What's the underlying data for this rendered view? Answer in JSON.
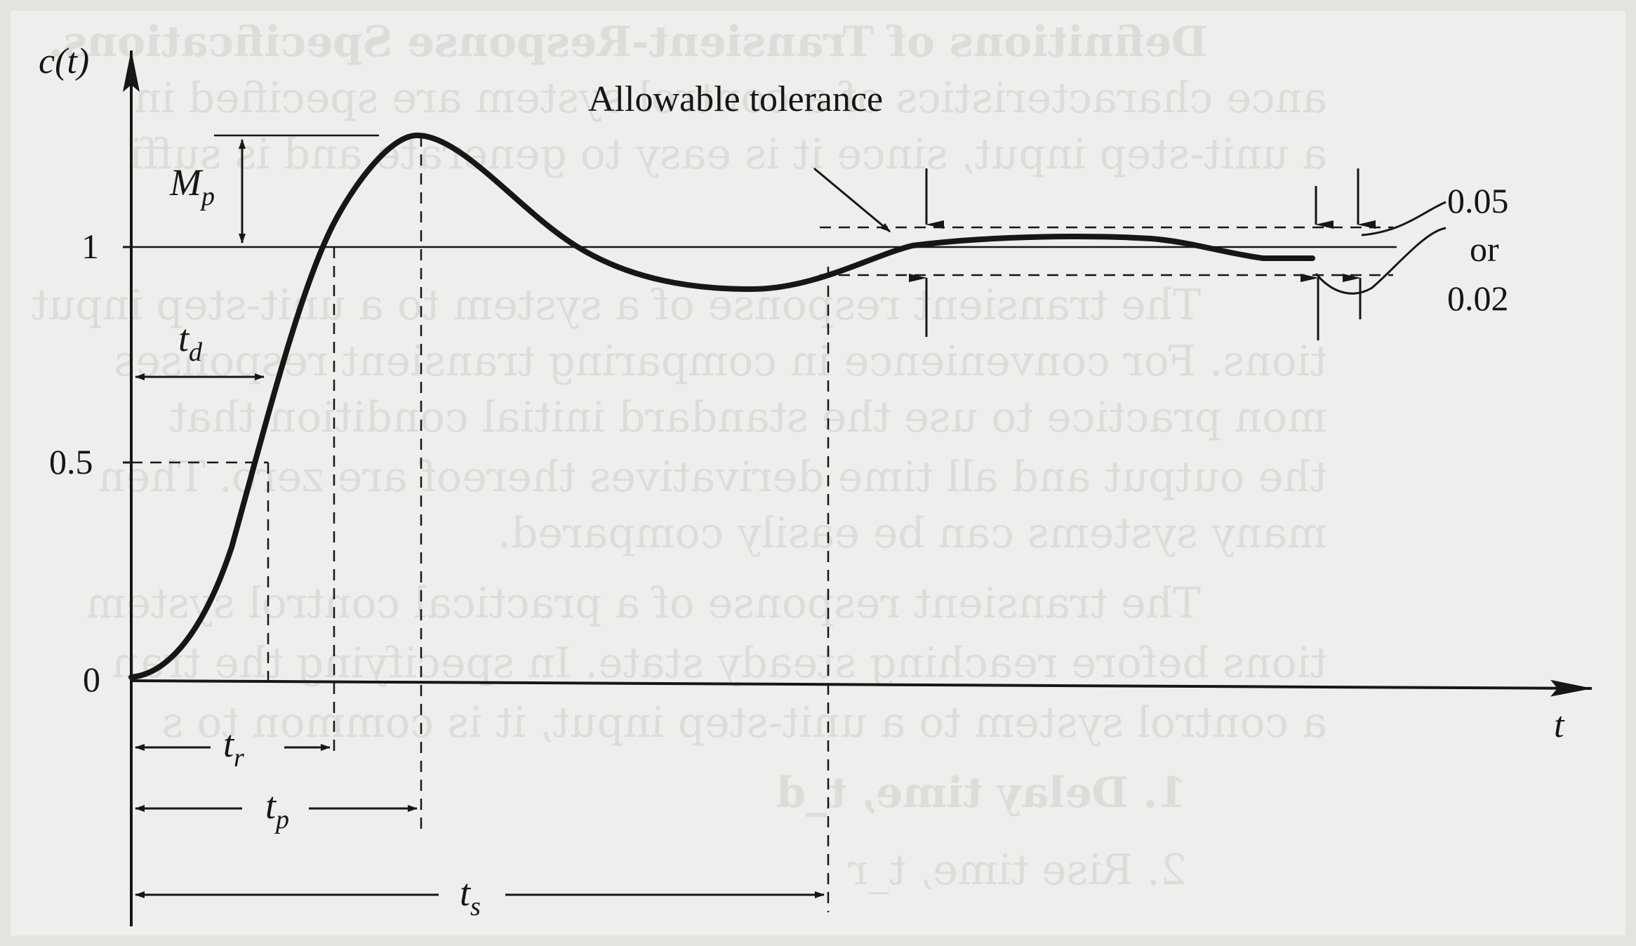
{
  "figure": {
    "y_axis_label": "c(t)",
    "x_axis_label": "t",
    "y_ticks": [
      "1",
      "0.5",
      "0"
    ],
    "annotations": {
      "allowable_tolerance": "Allowable tolerance",
      "mp_main": "M",
      "mp_sub": "p",
      "td_main": "t",
      "td_sub": "d",
      "tr_main": "t",
      "tr_sub": "r",
      "tp_main": "t",
      "tp_sub": "p",
      "ts_main": "t",
      "ts_sub": "s",
      "tolerance_value_1": "0.05",
      "tolerance_or": "or",
      "tolerance_value_2": "0.02"
    },
    "colors": {
      "paper": "#efeeec",
      "ink": "#161616",
      "bleed_through": "#dedcd8"
    }
  },
  "background_text": [
    "Definitions of Transient-Response Specifications.",
    "ance characteristics of a control system are specified in",
    "a unit-step input, since it is easy to generate and is suffi",
    "The transient response of a system to a unit-step input",
    "tions. For convenience in comparing transient responses",
    "mon practice to use the standard initial condition that",
    "the output and all time derivatives thereof are zero. Then",
    "many systems can be easily compared.",
    "The transient response of a practical control system",
    "tions before reaching steady state. In specifying the tran",
    "a control system to a unit-step input, it is common to s",
    "1. Delay time, t_d",
    "2. Rise time, t_r"
  ]
}
